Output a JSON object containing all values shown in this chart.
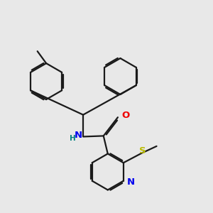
{
  "bg_color": "#e8e8e8",
  "bond_color": "#1a1a1a",
  "N_color": "#0000ee",
  "O_color": "#ee0000",
  "S_color": "#bbbb00",
  "H_color": "#008080",
  "lw": 1.6,
  "dbo": 0.055,
  "r_ring": 0.72,
  "xlim": [
    0.3,
    8.7
  ],
  "ylim": [
    2.2,
    9.5
  ]
}
